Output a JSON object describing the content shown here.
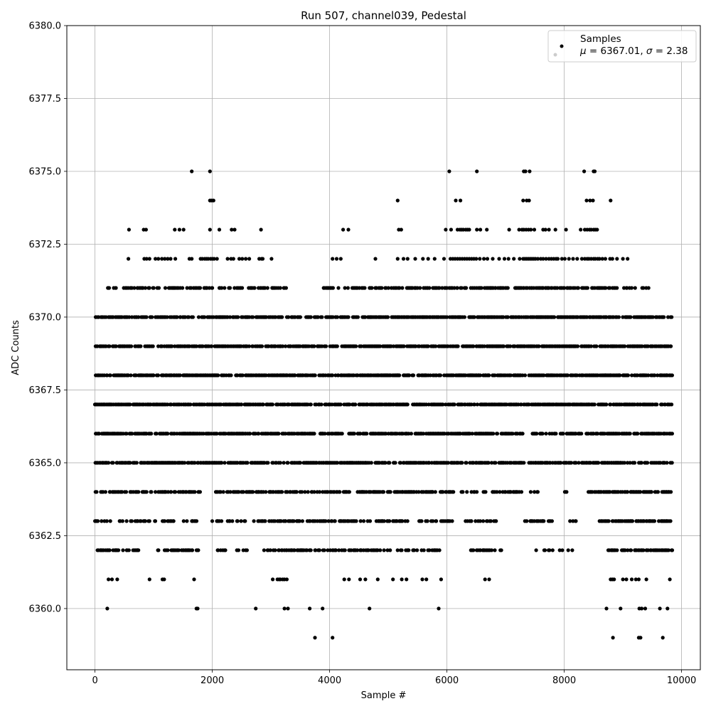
{
  "chart_data": {
    "type": "scatter",
    "title": "Run 507, channel039, Pedestal",
    "xlabel": "Sample #",
    "ylabel": "ADC Counts",
    "xlim": [
      -480,
      10320
    ],
    "ylim": [
      6357.9,
      6380.0
    ],
    "xticks": [
      0,
      2000,
      4000,
      6000,
      8000,
      10000
    ],
    "yticks": [
      6360.0,
      6362.5,
      6365.0,
      6367.5,
      6370.0,
      6372.5,
      6375.0,
      6377.5,
      6380.0
    ],
    "xtick_labels": [
      "0",
      "2000",
      "4000",
      "6000",
      "8000",
      "10000"
    ],
    "ytick_labels": [
      "6360.0",
      "6362.5",
      "6365.0",
      "6367.5",
      "6370.0",
      "6372.5",
      "6375.0",
      "6377.5",
      "6380.0"
    ],
    "grid": true,
    "legend_position": "top-right",
    "series": [
      {
        "name": "Samples",
        "color": "#000000",
        "x_range": [
          0,
          9840
        ],
        "bands": [
          {
            "y": 6359,
            "x": [
              3750,
              4050,
              8830,
              9270,
              9300,
              9680
            ]
          },
          {
            "y": 6360,
            "x": [
              210,
              1730,
              1750,
              2740,
              3230,
              3290,
              3660,
              3880,
              4680,
              5860,
              8720,
              8960,
              9280,
              9320,
              9380,
              9630,
              9760
            ]
          },
          {
            "y": 6361,
            "x": [
              230,
              290,
              380,
              930,
              1150,
              1180,
              1690,
              3030,
              3110,
              3140,
              3160,
              3200,
              3230,
              3270,
              4250,
              4330,
              4520,
              4610,
              4820,
              5080,
              5230,
              5310,
              5580,
              5650,
              5900,
              6650,
              6720,
              8790,
              8820,
              8850,
              9000,
              9060,
              9150,
              9220,
              9270,
              9400,
              9800
            ],
            "x_dense": []
          },
          {
            "y": 6362,
            "x": [],
            "x_dense": [
              [
                0,
                1780,
                0.45
              ],
              [
                2080,
                2600,
                0.3
              ],
              [
                2840,
                4820,
                0.7
              ],
              [
                4860,
                5900,
                0.45
              ],
              [
                6400,
                7000,
                0.45
              ],
              [
                7520,
                8170,
                0.35
              ],
              [
                8700,
                9840,
                0.75
              ]
            ]
          },
          {
            "y": 6363,
            "x": [],
            "x_dense": [
              [
                0,
                1780,
                0.55
              ],
              [
                1980,
                2400,
                0.3
              ],
              [
                2400,
                5330,
                0.7
              ],
              [
                5500,
                6100,
                0.6
              ],
              [
                6260,
                6900,
                0.5
              ],
              [
                7300,
                7800,
                0.6
              ],
              [
                8100,
                8200,
                0.5
              ],
              [
                8600,
                9840,
                0.85
              ]
            ]
          },
          {
            "y": 6364,
            "x": [],
            "x_dense": [
              [
                0,
                1790,
                0.6
              ],
              [
                2050,
                6110,
                0.75
              ],
              [
                6200,
                7300,
                0.55
              ],
              [
                7400,
                7600,
                0.4
              ],
              [
                7950,
                8050,
                0.5
              ],
              [
                8400,
                9840,
                0.85
              ]
            ]
          },
          {
            "y": 6365,
            "x": [],
            "x_dense": [
              [
                0,
                9840,
                0.92
              ]
            ]
          },
          {
            "y": 6366,
            "x": [],
            "x_dense": [
              [
                0,
                7300,
                0.93
              ],
              [
                7440,
                9840,
                0.9
              ]
            ]
          },
          {
            "y": 6367,
            "x": [],
            "x_dense": [
              [
                0,
                9840,
                0.97
              ]
            ]
          },
          {
            "y": 6368,
            "x": [],
            "x_dense": [
              [
                0,
                9840,
                0.95
              ]
            ]
          },
          {
            "y": 6369,
            "x": [],
            "x_dense": [
              [
                0,
                9840,
                0.93
              ]
            ]
          },
          {
            "y": 6370,
            "x": [],
            "x_dense": [
              [
                0,
                3500,
                0.85
              ],
              [
                3600,
                9840,
                0.9
              ]
            ]
          },
          {
            "y": 6371,
            "x": [],
            "x_dense": [
              [
                200,
                2000,
                0.6
              ],
              [
                2050,
                3300,
                0.5
              ],
              [
                3900,
                6000,
                0.55
              ],
              [
                6000,
                8900,
                0.7
              ],
              [
                9000,
                9350,
                0.4
              ],
              [
                9400,
                9500,
                0.3
              ]
            ]
          },
          {
            "y": 6372,
            "x": [
              570,
              840,
              880,
              930,
              1030,
              1080,
              1140,
              1190,
              1240,
              1290,
              1370,
              1610,
              1650,
              1800,
              1830,
              1870,
              1900,
              1930,
              1970,
              2000,
              2030,
              2080,
              2260,
              2320,
              2360,
              2460,
              2510,
              2570,
              2630,
              2800,
              2840,
              2860,
              3010,
              4050,
              4120,
              4190,
              4780,
              5160,
              5260,
              5330,
              5460,
              5590,
              5680,
              5790,
              5950,
              6060,
              6100,
              6140,
              6180,
              6220,
              6260,
              6300,
              6340,
              6380,
              6420,
              6460,
              6500,
              6560,
              6630,
              6690,
              6780,
              6890,
              6980,
              7050,
              7140,
              7240,
              7300,
              7330,
              7360,
              7390,
              7420,
              7450,
              7480,
              7510,
              7550,
              7600,
              7640,
              7690,
              7740,
              7780,
              7820,
              7860,
              7890,
              7960,
              8010,
              8080,
              8150,
              8220,
              8300,
              8350,
              8390,
              8420,
              8460,
              8500,
              8530,
              8570,
              8600,
              8650,
              8700,
              8780,
              8820,
              8900,
              9000,
              9080
            ]
          },
          {
            "y": 6373,
            "x": [
              580,
              830,
              870,
              1360,
              1440,
              1510,
              1960,
              2120,
              2330,
              2380,
              2830,
              4230,
              4320,
              5180,
              5220,
              5980,
              6070,
              6180,
              6220,
              6250,
              6280,
              6320,
              6350,
              6380,
              6510,
              6570,
              6680,
              7060,
              7230,
              7280,
              7310,
              7350,
              7390,
              7430,
              7490,
              7640,
              7680,
              7740,
              7850,
              8030,
              8280,
              8350,
              8390,
              8430,
              8460,
              8500,
              8530,
              8560
            ]
          },
          {
            "y": 6374,
            "x": [
              1960,
              1990,
              2020,
              5160,
              6150,
              6230,
              7300,
              7360,
              7400,
              8380,
              8440,
              8490,
              8790
            ]
          },
          {
            "y": 6375,
            "x": [
              1650,
              1960,
              6040,
              6510,
              7310,
              7340,
              7410,
              8340,
              8500,
              8520
            ]
          }
        ],
        "legend_label": "Samples",
        "legend_stats": "μ = 6367.01, σ = 2.38"
      }
    ]
  }
}
